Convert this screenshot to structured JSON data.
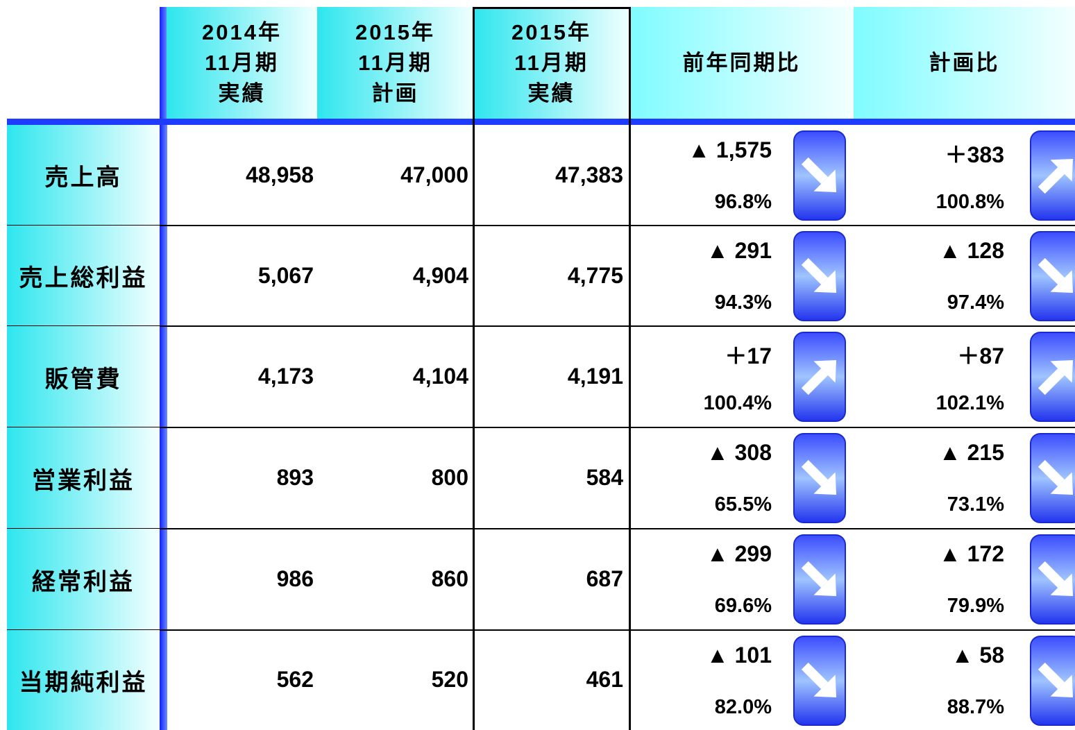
{
  "header": {
    "columns": [
      {
        "lines": [
          "2014年",
          "11月期",
          "実績"
        ]
      },
      {
        "lines": [
          "2015年",
          "11月期",
          "計画"
        ]
      },
      {
        "lines": [
          "2015年",
          "11月期",
          "実績"
        ]
      },
      {
        "lines": [
          "前年同期比"
        ]
      },
      {
        "lines": [
          "計画比"
        ]
      }
    ]
  },
  "rows": [
    {
      "label": "売上高",
      "values": [
        "48,958",
        "47,000",
        "47,383"
      ],
      "yoy": {
        "diff": "▲ 1,575",
        "ratio": "96.8%"
      },
      "plan": {
        "diff": "＋383",
        "ratio": "100.8%"
      }
    },
    {
      "label": "売上総利益",
      "values": [
        "5,067",
        "4,904",
        "4,775"
      ],
      "yoy": {
        "diff": "▲ 291",
        "ratio": "94.3%"
      },
      "plan": {
        "diff": "▲ 128",
        "ratio": "97.4%"
      }
    },
    {
      "label": "販管費",
      "values": [
        "4,173",
        "4,104",
        "4,191"
      ],
      "yoy": {
        "diff": "＋17",
        "ratio": "100.4%"
      },
      "plan": {
        "diff": "＋87",
        "ratio": "102.1%"
      }
    },
    {
      "label": "営業利益",
      "values": [
        "893",
        "800",
        "584"
      ],
      "yoy": {
        "diff": "▲ 308",
        "ratio": "65.5%"
      },
      "plan": {
        "diff": "▲ 215",
        "ratio": "73.1%"
      }
    },
    {
      "label": "経常利益",
      "values": [
        "986",
        "860",
        "687"
      ],
      "yoy": {
        "diff": "▲ 299",
        "ratio": "69.6%"
      },
      "plan": {
        "diff": "▲ 172",
        "ratio": "79.9%"
      }
    },
    {
      "label": "当期純利益",
      "values": [
        "562",
        "520",
        "461"
      ],
      "yoy": {
        "diff": "▲ 101",
        "ratio": "82.0%"
      },
      "plan": {
        "diff": "▲ 58",
        "ratio": "88.7%"
      }
    }
  ]
}
